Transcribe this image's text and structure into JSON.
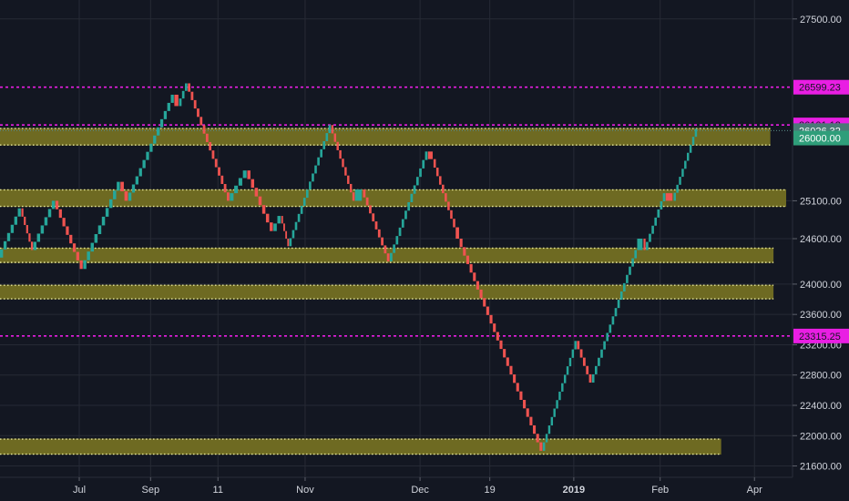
{
  "chart_data": {
    "type": "line",
    "style": "renko",
    "ylim": [
      21450,
      27750
    ],
    "y_ticks": [
      21600,
      22000,
      22400,
      22800,
      23200,
      23600,
      24000,
      24600,
      25100,
      27500
    ],
    "y_tick_labels": [
      "21600.00",
      "22000.00",
      "22400.00",
      "22800.00",
      "23200.00",
      "23600.00",
      "24000.00",
      "24600.00",
      "25100.00",
      "27500.00"
    ],
    "x_ticks": [
      {
        "label": "Jul",
        "t": 0.1,
        "bold": false
      },
      {
        "label": "Sep",
        "t": 0.19,
        "bold": false
      },
      {
        "label": "11",
        "t": 0.275,
        "bold": false
      },
      {
        "label": "Nov",
        "t": 0.385,
        "bold": false
      },
      {
        "label": "Dec",
        "t": 0.53,
        "bold": false
      },
      {
        "label": "19",
        "t": 0.618,
        "bold": false
      },
      {
        "label": "2019",
        "t": 0.724,
        "bold": true
      },
      {
        "label": "Feb",
        "t": 0.833,
        "bold": false
      },
      {
        "label": "Apr",
        "t": 0.952,
        "bold": false
      }
    ],
    "path": [
      [
        0.0,
        24350
      ],
      [
        0.027,
        25000
      ],
      [
        0.042,
        24450
      ],
      [
        0.07,
        25100
      ],
      [
        0.105,
        24200
      ],
      [
        0.152,
        25350
      ],
      [
        0.162,
        25100
      ],
      [
        0.22,
        26500
      ],
      [
        0.226,
        26350
      ],
      [
        0.237,
        26650
      ],
      [
        0.29,
        25100
      ],
      [
        0.312,
        25500
      ],
      [
        0.345,
        24700
      ],
      [
        0.355,
        24900
      ],
      [
        0.365,
        24500
      ],
      [
        0.418,
        26100
      ],
      [
        0.448,
        25100
      ],
      [
        0.458,
        25250
      ],
      [
        0.492,
        24300
      ],
      [
        0.54,
        25750
      ],
      [
        0.547,
        25650
      ],
      [
        0.575,
        24750
      ],
      [
        0.58,
        24600
      ],
      [
        0.685,
        21800
      ],
      [
        0.728,
        23250
      ],
      [
        0.747,
        22700
      ],
      [
        0.804,
        24450
      ],
      [
        0.812,
        24600
      ],
      [
        0.815,
        24450
      ],
      [
        0.84,
        25200
      ],
      [
        0.85,
        25100
      ],
      [
        0.88,
        26050
      ]
    ],
    "up_color": "#26a69a",
    "down_color": "#ef5350",
    "zones": [
      {
        "y_low": 25830,
        "y_high": 26060,
        "end_t": 0.972
      },
      {
        "y_low": 25020,
        "y_high": 25250,
        "end_t": 0.992
      },
      {
        "y_low": 24280,
        "y_high": 24480,
        "end_t": 0.976
      },
      {
        "y_low": 23800,
        "y_high": 23990,
        "end_t": 0.976
      },
      {
        "y_low": 21750,
        "y_high": 21960,
        "end_t": 0.91
      }
    ],
    "zone_color": "#6e6a22",
    "zone_dot_color": "#e6e69a",
    "levels": [
      {
        "label": "26599.23",
        "value": 26599.23
      },
      {
        "label": "26101.12",
        "value": 26101.12
      },
      {
        "label": "23315.25",
        "value": 23315.25
      }
    ],
    "level_color": "#e91ee3",
    "price_label": {
      "label": "26026.32",
      "value": 26026.32
    },
    "price_line_color": "#5a8a86",
    "price_badge_color": "#4a7a76",
    "price_below": {
      "label": "26000.00",
      "value": 26000.0
    },
    "price_below_color": "#2f9e7a"
  }
}
